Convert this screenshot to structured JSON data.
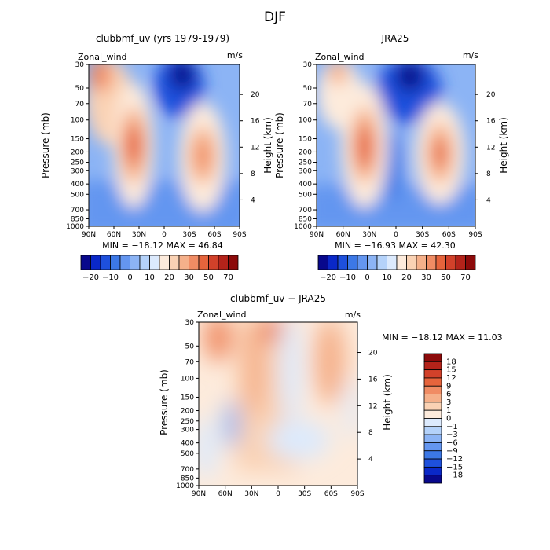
{
  "figure_title": "DJF",
  "colors": {
    "wind_cbar": [
      "#08088c",
      "#0a28c8",
      "#1e50dc",
      "#3c78e6",
      "#6496f0",
      "#8cb4f5",
      "#b4d2fa",
      "#dceafd",
      "#fdebdc",
      "#fad2b4",
      "#f5b08a",
      "#f08c64",
      "#e6643c",
      "#d2412a",
      "#b4231a",
      "#8c0a0a"
    ],
    "diff_cbar": [
      "#08088c",
      "#0a28c8",
      "#1e50dc",
      "#3c78e6",
      "#6496f0",
      "#8cb4f5",
      "#b4d2fa",
      "#dceafd",
      "#fdebdc",
      "#fad2b4",
      "#f5b08a",
      "#f08c64",
      "#e6643c",
      "#d2412a",
      "#b4231a",
      "#8c0a0a"
    ]
  },
  "chart_data": [
    {
      "type": "heatmap",
      "title": "clubbmf_uv (yrs 1979-1979)",
      "left_label": "Zonal_wind",
      "right_label": "m/s",
      "xlabel": "",
      "ylabel": "Pressure (mb)",
      "ylabel_right": "Height (km)",
      "x_ticks": [
        "90N",
        "60N",
        "30N",
        "0",
        "30S",
        "60S",
        "90S"
      ],
      "x_values": [
        90,
        60,
        30,
        0,
        -30,
        -60,
        -90
      ],
      "y_ticks": [
        "30",
        "50",
        "70",
        "100",
        "150",
        "200",
        "250",
        "300",
        "400",
        "500",
        "700",
        "850",
        "1000"
      ],
      "y_values": [
        30,
        50,
        70,
        100,
        150,
        200,
        250,
        300,
        400,
        500,
        700,
        850,
        1000
      ],
      "height_ticks": [
        "20",
        "16",
        "12",
        "8",
        "4"
      ],
      "height_values": [
        20,
        16,
        12,
        8,
        4
      ],
      "min_max_text": "MIN = −18.12   MAX =  46.84",
      "min": -18.12,
      "max": 46.84,
      "colorbar_labels": [
        "−20",
        "−10",
        "0",
        "10",
        "20",
        "30",
        "50",
        "70"
      ],
      "jets": [
        {
          "lat": 30,
          "p": 200,
          "peak": 46.84
        },
        {
          "lat": -45,
          "p": 200,
          "peak": 36
        },
        {
          "lat": 70,
          "p": 30,
          "peak": 30
        }
      ]
    },
    {
      "type": "heatmap",
      "title": "JRA25",
      "left_label": "Zonal_wind",
      "right_label": "m/s",
      "xlabel": "",
      "ylabel": "Pressure (mb)",
      "ylabel_right": "Height (km)",
      "x_ticks": [
        "90N",
        "60N",
        "30N",
        "0",
        "30S",
        "60S",
        "90S"
      ],
      "x_values": [
        90,
        60,
        30,
        0,
        -30,
        -60,
        -90
      ],
      "y_ticks": [
        "30",
        "50",
        "70",
        "100",
        "150",
        "200",
        "250",
        "300",
        "400",
        "500",
        "700",
        "850",
        "1000"
      ],
      "y_values": [
        30,
        50,
        70,
        100,
        150,
        200,
        250,
        300,
        400,
        500,
        700,
        850,
        1000
      ],
      "height_ticks": [
        "20",
        "16",
        "12",
        "8",
        "4"
      ],
      "height_values": [
        20,
        16,
        12,
        8,
        4
      ],
      "min_max_text": "MIN = −16.93   MAX =  42.30",
      "min": -16.93,
      "max": 42.3,
      "colorbar_labels": [
        "−20",
        "−10",
        "0",
        "10",
        "20",
        "30",
        "50",
        "70"
      ],
      "jets": [
        {
          "lat": 30,
          "p": 200,
          "peak": 42.3
        },
        {
          "lat": -45,
          "p": 200,
          "peak": 38
        },
        {
          "lat": 68,
          "p": 30,
          "peak": 22
        }
      ]
    },
    {
      "type": "heatmap",
      "title": "clubbmf_uv − JRA25",
      "left_label": "Zonal_wind",
      "right_label": "m/s",
      "xlabel": "",
      "ylabel": "Pressure (mb)",
      "ylabel_right": "Height (km)",
      "x_ticks": [
        "90N",
        "60N",
        "30N",
        "0",
        "30S",
        "60S",
        "90S"
      ],
      "x_values": [
        90,
        60,
        30,
        0,
        -30,
        -60,
        -90
      ],
      "y_ticks": [
        "30",
        "50",
        "70",
        "100",
        "150",
        "200",
        "250",
        "300",
        "400",
        "500",
        "700",
        "850",
        "1000"
      ],
      "y_values": [
        30,
        50,
        70,
        100,
        150,
        200,
        250,
        300,
        400,
        500,
        700,
        850,
        1000
      ],
      "height_ticks": [
        "20",
        "16",
        "12",
        "8",
        "4"
      ],
      "height_values": [
        20,
        16,
        12,
        8,
        4
      ],
      "min_max_text": "MIN = −18.12   MAX =  11.03",
      "min": -18.12,
      "max": 11.03,
      "colorbar_labels": [
        "18",
        "15",
        "12",
        "9",
        "6",
        "3",
        "1",
        "0",
        "−1",
        "−3",
        "−6",
        "−9",
        "−12",
        "−15",
        "−18"
      ]
    }
  ]
}
